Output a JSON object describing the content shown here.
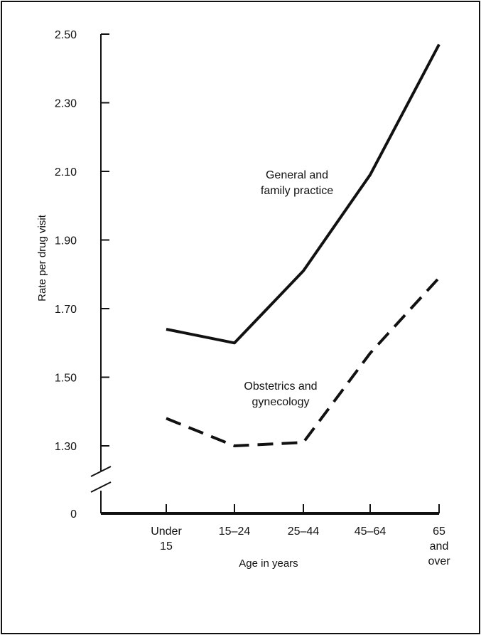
{
  "chart_data": {
    "type": "line",
    "title": "",
    "xlabel": "Age in years",
    "ylabel": "Rate per drug visit",
    "categories": [
      [
        "Under",
        "15"
      ],
      [
        "15–24"
      ],
      [
        "25–44"
      ],
      [
        "45–64"
      ],
      [
        "65",
        "and",
        "over"
      ]
    ],
    "y_ticks": [
      "2.50",
      "2.30",
      "2.10",
      "1.90",
      "1.70",
      "1.50",
      "1.30"
    ],
    "y_tick_values": [
      2.5,
      2.3,
      2.1,
      1.9,
      1.7,
      1.5,
      1.3
    ],
    "y_zero_label": "0",
    "ylim": [
      1.3,
      2.5
    ],
    "axis_break": true,
    "grid": false,
    "series": [
      {
        "name": "",
        "label_lines": [
          "General and",
          "family practice"
        ],
        "style": "solid",
        "color": "#111111",
        "values": [
          1.64,
          1.6,
          1.81,
          2.09,
          2.47
        ]
      },
      {
        "name": "",
        "label_lines": [
          "Obstetrics and",
          "gynecology"
        ],
        "style": "dashed",
        "color": "#111111",
        "values": [
          1.38,
          1.3,
          1.31,
          1.57,
          1.79
        ]
      }
    ]
  }
}
